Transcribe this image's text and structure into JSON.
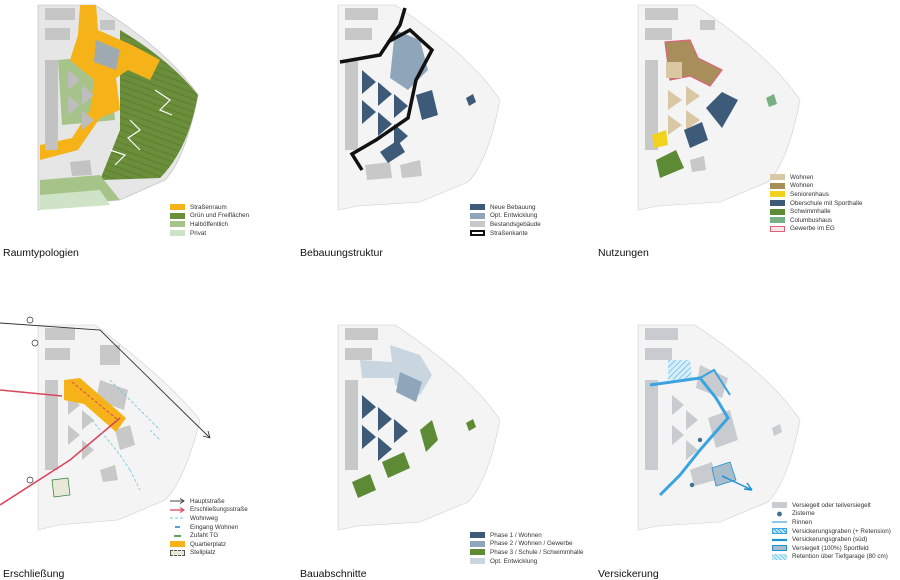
{
  "panels": [
    {
      "caption": "Raumtypologien",
      "legend": [
        {
          "label": "Straßenraum",
          "color": "#f5b319"
        },
        {
          "label": "Grün und Freiflächen",
          "color": "#6a8e3a"
        },
        {
          "label": "Halböffentlich",
          "color": "#a6c48a"
        },
        {
          "label": "Privat",
          "color": "#cfe3c6"
        }
      ]
    },
    {
      "caption": "Bebauungstruktur",
      "legend": [
        {
          "label": "Neue Bebauung",
          "color": "#3d5a78"
        },
        {
          "label": "Opt. Entwicklung",
          "color": "#8fa6ba"
        },
        {
          "label": "Bestandsgebäude",
          "color": "#c8c8c8"
        },
        {
          "label": "Straßenkante",
          "color": "#111111"
        }
      ]
    },
    {
      "caption": "Nutzungen",
      "legend": [
        {
          "label": "Wohnen",
          "color": "#d9c8a3"
        },
        {
          "label": "Wohnen",
          "color": "#a88e5a"
        },
        {
          "label": "Seniorenhaus",
          "color": "#f3d21d"
        },
        {
          "label": "Oberschule mit Sporthalle",
          "color": "#3d5a78"
        },
        {
          "label": "Schwimmhalle",
          "color": "#5d8a35"
        },
        {
          "label": "Columbushaus",
          "color": "#79b083"
        },
        {
          "label": "Gewerbe im EG",
          "color": "#e0627a"
        }
      ]
    },
    {
      "caption": "Erschließung",
      "legend": [
        {
          "label": "Hauptstraße",
          "color": "#333333"
        },
        {
          "label": "Erschließungsstraße",
          "color": "#d9475f"
        },
        {
          "label": "Wohnweg",
          "color": "#6fc3e0"
        },
        {
          "label": "Eingang Wohnen",
          "color": "#1b7fc4"
        },
        {
          "label": "Zufaht TG",
          "color": "#2e7d32"
        },
        {
          "label": "Quartierplatz",
          "color": "#f5b319"
        },
        {
          "label": "Stellplatz",
          "color": "#e8e8d8"
        }
      ]
    },
    {
      "caption": "Bauabschnitte",
      "legend": [
        {
          "label": "Phase 1 / Wohnen",
          "color": "#3d5a78"
        },
        {
          "label": "Phase 2 / Wohnen / Gewerbe",
          "color": "#8fa6ba"
        },
        {
          "label": "Phase 3 / Schule / Schwimmhalle",
          "color": "#5d8a35"
        },
        {
          "label": "Opt. Entwicklung",
          "color": "#c9d6e0"
        }
      ]
    },
    {
      "caption": "Versickerung",
      "legend": [
        {
          "label": "Versiegelt oder teilversiegelt",
          "color": "#c8ccd0"
        },
        {
          "label": "Zisterne",
          "color": "#3d6f8f"
        },
        {
          "label": "Rinnen",
          "color": "#1f8fd1"
        },
        {
          "label": "Versickerungsgraben (+ Retension)",
          "color": "#3aa3e0"
        },
        {
          "label": "Versickerungsgraben (süd)",
          "color": "#1f8fd1"
        },
        {
          "label": "Versiegelt (100%) Sportfeld",
          "color": "#a9bccb"
        },
        {
          "label": "Retention über Tiefgarage (80 cm)",
          "color": "#aee0f5"
        }
      ]
    }
  ]
}
